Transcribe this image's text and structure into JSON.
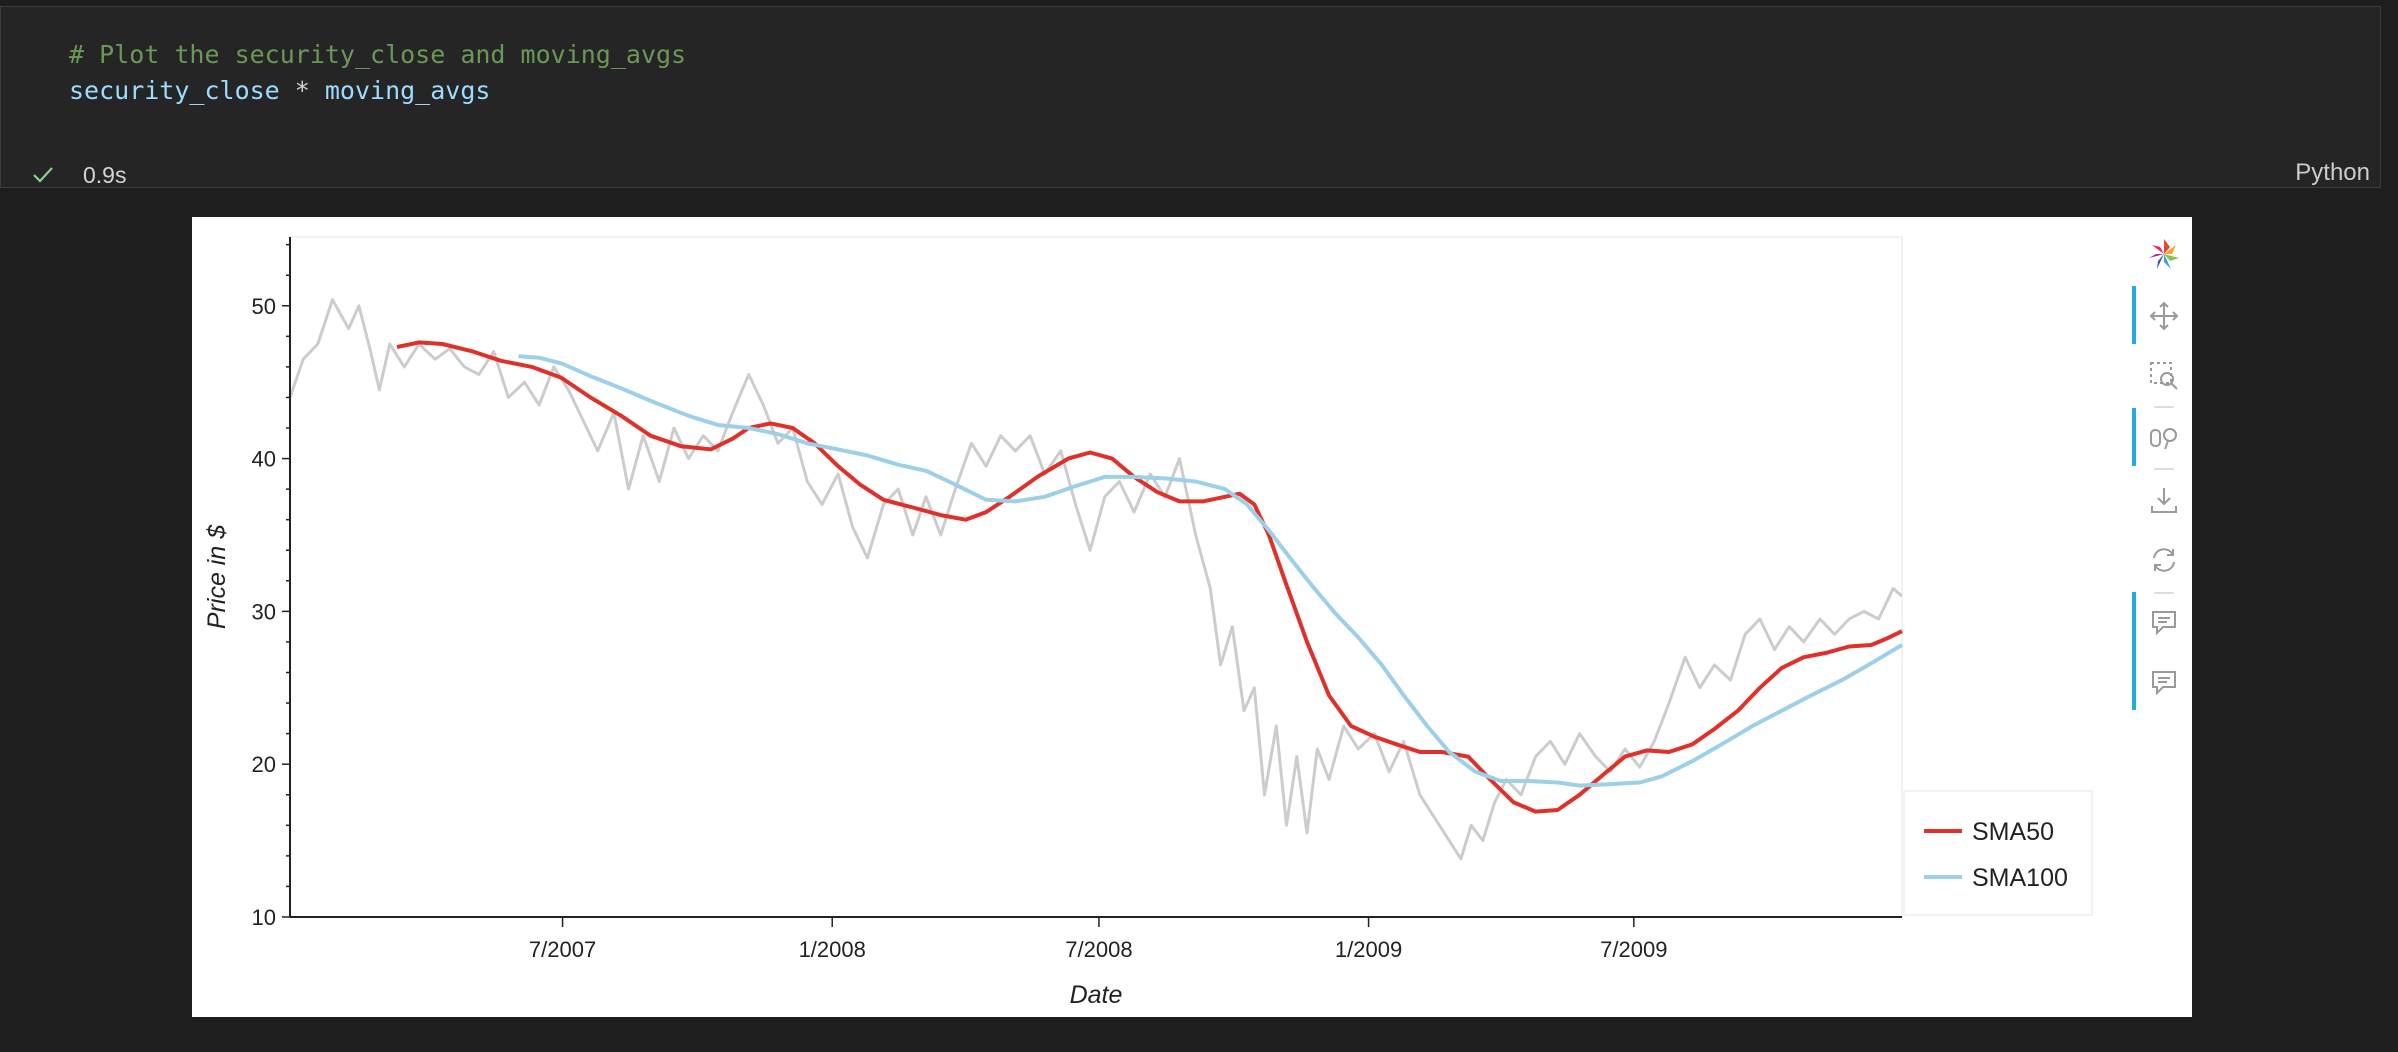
{
  "cell": {
    "code_line1": "# Plot the security_close and moving_avgs",
    "code_var1": "security_close",
    "code_op": " * ",
    "code_var2": "moving_avgs",
    "exec_time": "0.9s",
    "language": "Python"
  },
  "toolbar": {
    "tools": [
      "bokeh-logo-icon",
      "pan-icon",
      "box-zoom-icon",
      "wheel-zoom-icon",
      "save-icon",
      "reset-icon",
      "hover-icon",
      "hover-icon"
    ]
  },
  "colors": {
    "close": "#cccccc",
    "sma50": "#e0302a",
    "sma100": "#9ccfe8",
    "active_tool": "#26aae1"
  },
  "chart_data": {
    "type": "line",
    "xlabel": "Date",
    "ylabel": "Price in $",
    "x_ticks": [
      "7/2007",
      "1/2008",
      "7/2008",
      "1/2009",
      "7/2009"
    ],
    "y_ticks": [
      10,
      20,
      30,
      40,
      50
    ],
    "ylim": [
      10,
      54.5
    ],
    "xlim": [
      "2006-12-27",
      "2009-12-31"
    ],
    "grid": false,
    "legend_placement": "bottom-right outside",
    "series": [
      {
        "name": "",
        "color": "#cccccc",
        "points": [
          [
            "2006-12-27",
            44.0
          ],
          [
            "2007-01-05",
            46.5
          ],
          [
            "2007-01-15",
            47.5
          ],
          [
            "2007-01-25",
            50.4
          ],
          [
            "2007-02-05",
            48.5
          ],
          [
            "2007-02-12",
            50.0
          ],
          [
            "2007-02-20",
            47.0
          ],
          [
            "2007-02-26",
            44.5
          ],
          [
            "2007-03-05",
            47.5
          ],
          [
            "2007-03-15",
            46.0
          ],
          [
            "2007-03-25",
            47.5
          ],
          [
            "2007-04-05",
            46.5
          ],
          [
            "2007-04-15",
            47.2
          ],
          [
            "2007-04-25",
            46.0
          ],
          [
            "2007-05-05",
            45.5
          ],
          [
            "2007-05-15",
            47.0
          ],
          [
            "2007-05-25",
            44.0
          ],
          [
            "2007-06-05",
            45.0
          ],
          [
            "2007-06-15",
            43.5
          ],
          [
            "2007-06-25",
            46.0
          ],
          [
            "2007-07-05",
            44.5
          ],
          [
            "2007-07-15",
            42.5
          ],
          [
            "2007-07-25",
            40.5
          ],
          [
            "2007-08-05",
            43.0
          ],
          [
            "2007-08-15",
            38.0
          ],
          [
            "2007-08-25",
            41.5
          ],
          [
            "2007-09-05",
            38.5
          ],
          [
            "2007-09-15",
            42.0
          ],
          [
            "2007-09-25",
            40.0
          ],
          [
            "2007-10-05",
            41.5
          ],
          [
            "2007-10-15",
            40.5
          ],
          [
            "2007-10-25",
            43.0
          ],
          [
            "2007-11-05",
            45.5
          ],
          [
            "2007-11-15",
            43.5
          ],
          [
            "2007-11-25",
            41.0
          ],
          [
            "2007-12-05",
            42.0
          ],
          [
            "2007-12-15",
            38.5
          ],
          [
            "2007-12-25",
            37.0
          ],
          [
            "2008-01-05",
            39.0
          ],
          [
            "2008-01-15",
            35.5
          ],
          [
            "2008-01-25",
            33.5
          ],
          [
            "2008-02-05",
            37.0
          ],
          [
            "2008-02-15",
            38.0
          ],
          [
            "2008-02-25",
            35.0
          ],
          [
            "2008-03-05",
            37.5
          ],
          [
            "2008-03-15",
            35.0
          ],
          [
            "2008-03-25",
            38.0
          ],
          [
            "2008-04-05",
            41.0
          ],
          [
            "2008-04-15",
            39.5
          ],
          [
            "2008-04-25",
            41.5
          ],
          [
            "2008-05-05",
            40.5
          ],
          [
            "2008-05-15",
            41.5
          ],
          [
            "2008-05-25",
            39.0
          ],
          [
            "2008-06-05",
            40.5
          ],
          [
            "2008-06-15",
            37.0
          ],
          [
            "2008-06-25",
            34.0
          ],
          [
            "2008-07-05",
            37.5
          ],
          [
            "2008-07-15",
            38.5
          ],
          [
            "2008-07-25",
            36.5
          ],
          [
            "2008-08-05",
            39.0
          ],
          [
            "2008-08-15",
            37.5
          ],
          [
            "2008-08-25",
            40.0
          ],
          [
            "2008-09-05",
            35.0
          ],
          [
            "2008-09-15",
            31.5
          ],
          [
            "2008-09-22",
            26.5
          ],
          [
            "2008-09-30",
            29.0
          ],
          [
            "2008-10-08",
            23.5
          ],
          [
            "2008-10-15",
            25.0
          ],
          [
            "2008-10-22",
            18.0
          ],
          [
            "2008-10-30",
            22.5
          ],
          [
            "2008-11-06",
            16.0
          ],
          [
            "2008-11-13",
            20.5
          ],
          [
            "2008-11-20",
            15.5
          ],
          [
            "2008-11-27",
            21.0
          ],
          [
            "2008-12-05",
            19.0
          ],
          [
            "2008-12-15",
            22.5
          ],
          [
            "2008-12-25",
            21.0
          ],
          [
            "2009-01-05",
            22.0
          ],
          [
            "2009-01-15",
            19.5
          ],
          [
            "2009-01-25",
            21.5
          ],
          [
            "2009-02-05",
            18.0
          ],
          [
            "2009-02-15",
            16.5
          ],
          [
            "2009-02-25",
            15.0
          ],
          [
            "2009-03-05",
            13.8
          ],
          [
            "2009-03-12",
            16.0
          ],
          [
            "2009-03-20",
            15.0
          ],
          [
            "2009-03-28",
            17.5
          ],
          [
            "2009-04-05",
            19.0
          ],
          [
            "2009-04-15",
            18.0
          ],
          [
            "2009-04-25",
            20.5
          ],
          [
            "2009-05-05",
            21.5
          ],
          [
            "2009-05-15",
            20.0
          ],
          [
            "2009-05-25",
            22.0
          ],
          [
            "2009-06-05",
            20.5
          ],
          [
            "2009-06-15",
            19.5
          ],
          [
            "2009-06-25",
            21.0
          ],
          [
            "2009-07-05",
            19.8
          ],
          [
            "2009-07-15",
            21.5
          ],
          [
            "2009-07-25",
            24.0
          ],
          [
            "2009-08-05",
            27.0
          ],
          [
            "2009-08-15",
            25.0
          ],
          [
            "2009-08-25",
            26.5
          ],
          [
            "2009-09-05",
            25.5
          ],
          [
            "2009-09-15",
            28.5
          ],
          [
            "2009-09-25",
            29.5
          ],
          [
            "2009-10-05",
            27.5
          ],
          [
            "2009-10-15",
            29.0
          ],
          [
            "2009-10-25",
            28.0
          ],
          [
            "2009-11-05",
            29.5
          ],
          [
            "2009-11-15",
            28.5
          ],
          [
            "2009-11-25",
            29.5
          ],
          [
            "2009-12-05",
            30.0
          ],
          [
            "2009-12-15",
            29.5
          ],
          [
            "2009-12-25",
            31.5
          ],
          [
            "2009-12-31",
            31.0
          ]
        ]
      },
      {
        "name": "SMA50",
        "color": "#e0302a",
        "points": [
          [
            "2007-03-10",
            47.3
          ],
          [
            "2007-03-25",
            47.6
          ],
          [
            "2007-04-10",
            47.5
          ],
          [
            "2007-05-01",
            47.0
          ],
          [
            "2007-05-20",
            46.4
          ],
          [
            "2007-06-10",
            46.0
          ],
          [
            "2007-06-30",
            45.3
          ],
          [
            "2007-07-20",
            44.0
          ],
          [
            "2007-08-10",
            42.8
          ],
          [
            "2007-08-30",
            41.5
          ],
          [
            "2007-09-20",
            40.8
          ],
          [
            "2007-10-10",
            40.6
          ],
          [
            "2007-10-25",
            41.3
          ],
          [
            "2007-11-05",
            42.0
          ],
          [
            "2007-11-20",
            42.3
          ],
          [
            "2007-12-05",
            42.0
          ],
          [
            "2007-12-20",
            41.0
          ],
          [
            "2008-01-05",
            39.5
          ],
          [
            "2008-01-20",
            38.3
          ],
          [
            "2008-02-05",
            37.3
          ],
          [
            "2008-02-25",
            36.8
          ],
          [
            "2008-03-15",
            36.3
          ],
          [
            "2008-04-01",
            36.0
          ],
          [
            "2008-04-15",
            36.5
          ],
          [
            "2008-05-01",
            37.5
          ],
          [
            "2008-05-20",
            38.8
          ],
          [
            "2008-06-10",
            40.0
          ],
          [
            "2008-06-25",
            40.4
          ],
          [
            "2008-07-10",
            40.0
          ],
          [
            "2008-07-25",
            38.8
          ],
          [
            "2008-08-10",
            37.8
          ],
          [
            "2008-08-25",
            37.2
          ],
          [
            "2008-09-10",
            37.2
          ],
          [
            "2008-09-25",
            37.5
          ],
          [
            "2008-10-05",
            37.7
          ],
          [
            "2008-10-15",
            37.0
          ],
          [
            "2008-10-25",
            35.0
          ],
          [
            "2008-11-05",
            32.0
          ],
          [
            "2008-11-20",
            28.0
          ],
          [
            "2008-12-05",
            24.5
          ],
          [
            "2008-12-20",
            22.5
          ],
          [
            "2009-01-05",
            21.8
          ],
          [
            "2009-01-20",
            21.3
          ],
          [
            "2009-02-05",
            20.8
          ],
          [
            "2009-02-20",
            20.8
          ],
          [
            "2009-03-10",
            20.5
          ],
          [
            "2009-03-25",
            19.0
          ],
          [
            "2009-04-10",
            17.5
          ],
          [
            "2009-04-25",
            16.9
          ],
          [
            "2009-05-10",
            17.0
          ],
          [
            "2009-05-25",
            18.0
          ],
          [
            "2009-06-10",
            19.3
          ],
          [
            "2009-06-25",
            20.5
          ],
          [
            "2009-07-10",
            20.9
          ],
          [
            "2009-07-25",
            20.8
          ],
          [
            "2009-08-10",
            21.3
          ],
          [
            "2009-08-25",
            22.3
          ],
          [
            "2009-09-10",
            23.5
          ],
          [
            "2009-09-25",
            25.0
          ],
          [
            "2009-10-10",
            26.3
          ],
          [
            "2009-10-25",
            27.0
          ],
          [
            "2009-11-10",
            27.3
          ],
          [
            "2009-11-25",
            27.7
          ],
          [
            "2009-12-10",
            27.8
          ],
          [
            "2009-12-20",
            28.2
          ],
          [
            "2009-12-31",
            28.7
          ]
        ]
      },
      {
        "name": "SMA100",
        "color": "#9ccfe8",
        "points": [
          [
            "2007-06-01",
            46.7
          ],
          [
            "2007-06-15",
            46.6
          ],
          [
            "2007-07-01",
            46.2
          ],
          [
            "2007-07-20",
            45.4
          ],
          [
            "2007-08-10",
            44.6
          ],
          [
            "2007-09-01",
            43.7
          ],
          [
            "2007-09-25",
            42.8
          ],
          [
            "2007-10-15",
            42.2
          ],
          [
            "2007-11-05",
            42.0
          ],
          [
            "2007-11-25",
            41.6
          ],
          [
            "2007-12-15",
            41.0
          ],
          [
            "2008-01-05",
            40.6
          ],
          [
            "2008-01-25",
            40.2
          ],
          [
            "2008-02-15",
            39.6
          ],
          [
            "2008-03-05",
            39.2
          ],
          [
            "2008-03-25",
            38.3
          ],
          [
            "2008-04-15",
            37.3
          ],
          [
            "2008-05-05",
            37.2
          ],
          [
            "2008-05-25",
            37.5
          ],
          [
            "2008-06-15",
            38.2
          ],
          [
            "2008-07-05",
            38.8
          ],
          [
            "2008-07-25",
            38.8
          ],
          [
            "2008-08-15",
            38.7
          ],
          [
            "2008-09-05",
            38.5
          ],
          [
            "2008-09-25",
            38.0
          ],
          [
            "2008-10-10",
            37.0
          ],
          [
            "2008-10-25",
            35.3
          ],
          [
            "2008-11-10",
            33.3
          ],
          [
            "2008-11-25",
            31.5
          ],
          [
            "2008-12-10",
            29.8
          ],
          [
            "2008-12-25",
            28.3
          ],
          [
            "2009-01-10",
            26.5
          ],
          [
            "2009-01-25",
            24.5
          ],
          [
            "2009-02-10",
            22.5
          ],
          [
            "2009-02-25",
            20.8
          ],
          [
            "2009-03-15",
            19.5
          ],
          [
            "2009-04-01",
            18.9
          ],
          [
            "2009-04-20",
            18.9
          ],
          [
            "2009-05-10",
            18.8
          ],
          [
            "2009-05-25",
            18.6
          ],
          [
            "2009-06-15",
            18.7
          ],
          [
            "2009-07-05",
            18.8
          ],
          [
            "2009-07-20",
            19.2
          ],
          [
            "2009-08-10",
            20.2
          ],
          [
            "2009-08-30",
            21.3
          ],
          [
            "2009-09-20",
            22.5
          ],
          [
            "2009-10-10",
            23.5
          ],
          [
            "2009-10-30",
            24.5
          ],
          [
            "2009-11-20",
            25.5
          ],
          [
            "2009-12-10",
            26.6
          ],
          [
            "2009-12-31",
            27.8
          ]
        ]
      }
    ]
  }
}
